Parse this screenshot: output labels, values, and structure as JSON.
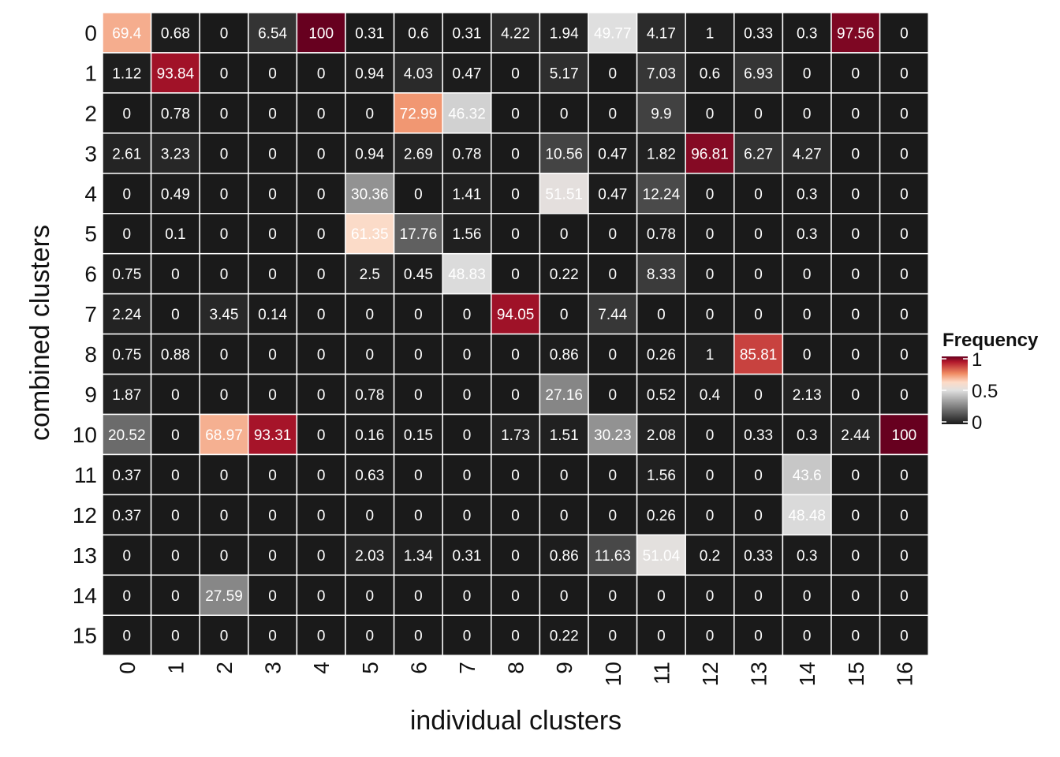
{
  "chart_data": {
    "type": "heatmap",
    "xlabel": "individual clusters",
    "ylabel": "combined clusters",
    "x_categories": [
      "0",
      "1",
      "2",
      "3",
      "4",
      "5",
      "6",
      "7",
      "8",
      "9",
      "10",
      "11",
      "12",
      "13",
      "14",
      "15",
      "16"
    ],
    "y_categories": [
      "0",
      "1",
      "2",
      "3",
      "4",
      "5",
      "6",
      "7",
      "8",
      "9",
      "10",
      "11",
      "12",
      "13",
      "14",
      "15"
    ],
    "values": [
      [
        69.4,
        0.68,
        0,
        6.54,
        100,
        0.31,
        0.6,
        0.31,
        4.22,
        1.94,
        49.77,
        4.17,
        1,
        0.33,
        0.3,
        97.56,
        0
      ],
      [
        1.12,
        93.84,
        0,
        0,
        0,
        0.94,
        4.03,
        0.47,
        0,
        5.17,
        0,
        7.03,
        0.6,
        6.93,
        0,
        0,
        0
      ],
      [
        0,
        0.78,
        0,
        0,
        0,
        0,
        72.99,
        46.32,
        0,
        0,
        0,
        9.9,
        0,
        0,
        0,
        0,
        0
      ],
      [
        2.61,
        3.23,
        0,
        0,
        0,
        0.94,
        2.69,
        0.78,
        0,
        10.56,
        0.47,
        1.82,
        96.81,
        6.27,
        4.27,
        0,
        0
      ],
      [
        0,
        0.49,
        0,
        0,
        0,
        30.36,
        0,
        1.41,
        0,
        51.51,
        0.47,
        12.24,
        0,
        0,
        0.3,
        0,
        0
      ],
      [
        0,
        0.1,
        0,
        0,
        0,
        61.35,
        17.76,
        1.56,
        0,
        0,
        0,
        0.78,
        0,
        0,
        0.3,
        0,
        0
      ],
      [
        0.75,
        0,
        0,
        0,
        0,
        2.5,
        0.45,
        48.83,
        0,
        0.22,
        0,
        8.33,
        0,
        0,
        0,
        0,
        0
      ],
      [
        2.24,
        0,
        3.45,
        0.14,
        0,
        0,
        0,
        0,
        94.05,
        0,
        7.44,
        0,
        0,
        0,
        0,
        0,
        0
      ],
      [
        0.75,
        0.88,
        0,
        0,
        0,
        0,
        0,
        0,
        0,
        0.86,
        0,
        0.26,
        1,
        85.81,
        0,
        0,
        0
      ],
      [
        1.87,
        0,
        0,
        0,
        0,
        0.78,
        0,
        0,
        0,
        27.16,
        0,
        0.52,
        0.4,
        0,
        2.13,
        0,
        0
      ],
      [
        20.52,
        0,
        68.97,
        93.31,
        0,
        0.16,
        0.15,
        0,
        1.73,
        1.51,
        30.23,
        2.08,
        0,
        0.33,
        0.3,
        2.44,
        100
      ],
      [
        0.37,
        0,
        0,
        0,
        0,
        0.63,
        0,
        0,
        0,
        0,
        0,
        1.56,
        0,
        0,
        43.6,
        0,
        0
      ],
      [
        0.37,
        0,
        0,
        0,
        0,
        0,
        0,
        0,
        0,
        0,
        0,
        0.26,
        0,
        0,
        48.48,
        0,
        0
      ],
      [
        0,
        0,
        0,
        0,
        0,
        2.03,
        1.34,
        0.31,
        0,
        0.86,
        11.63,
        51.04,
        0.2,
        0.33,
        0.3,
        0,
        0
      ],
      [
        0,
        0,
        27.59,
        0,
        0,
        0,
        0,
        0,
        0,
        0,
        0,
        0,
        0,
        0,
        0,
        0,
        0
      ],
      [
        0,
        0,
        0,
        0,
        0,
        0,
        0,
        0,
        0,
        0.22,
        0,
        0,
        0,
        0,
        0,
        0,
        0
      ]
    ],
    "legend": {
      "title": "Frequency",
      "ticks": [
        0,
        0.5,
        1
      ],
      "tick_labels": [
        "0",
        "0.5",
        "1"
      ],
      "placement": "right"
    },
    "color_scale": [
      "#1a1a1a",
      "#e0e0e0",
      "#fddbc7",
      "#ef8a62",
      "#b2182b",
      "#67001f"
    ]
  }
}
